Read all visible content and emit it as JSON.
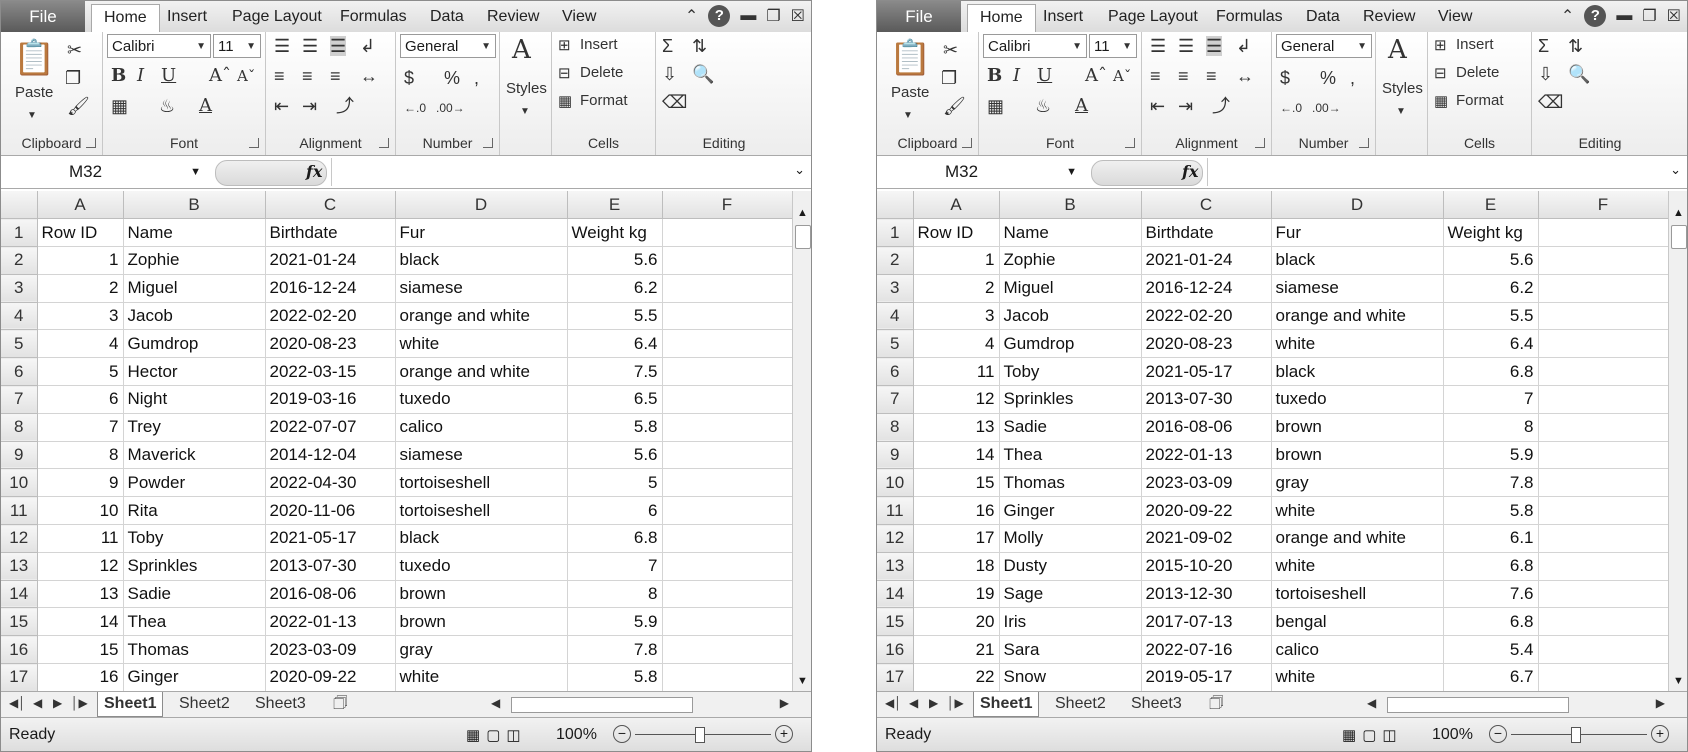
{
  "tabs": {
    "file": "File",
    "home": "Home",
    "insert": "Insert",
    "page_layout": "Page Layout",
    "formulas": "Formulas",
    "data": "Data",
    "review": "Review",
    "view": "View"
  },
  "ribbon": {
    "paste": "Paste",
    "clipboard": "Clipboard",
    "font_name": "Calibri",
    "font_size": "11",
    "font": "Font",
    "alignment": "Alignment",
    "number_format": "General",
    "number": "Number",
    "styles": "Styles",
    "insert": "Insert",
    "delete": "Delete",
    "format": "Format",
    "cells": "Cells",
    "editing": "Editing"
  },
  "formula_bar": {
    "name_box": "M32",
    "fx": "fx",
    "content": ""
  },
  "columns": [
    "A",
    "B",
    "C",
    "D",
    "E",
    "F"
  ],
  "sheet_tabs": [
    "Sheet1",
    "Sheet2",
    "Sheet3"
  ],
  "status": {
    "ready": "Ready",
    "zoom": "100%"
  },
  "sheets": [
    {
      "rows": [
        [
          "Row ID",
          "Name",
          "Birthdate",
          "Fur",
          "Weight kg"
        ],
        [
          "1",
          "Zophie",
          "2021-01-24",
          "black",
          "5.6"
        ],
        [
          "2",
          "Miguel",
          "2016-12-24",
          "siamese",
          "6.2"
        ],
        [
          "3",
          "Jacob",
          "2022-02-20",
          "orange and white",
          "5.5"
        ],
        [
          "4",
          "Gumdrop",
          "2020-08-23",
          "white",
          "6.4"
        ],
        [
          "5",
          "Hector",
          "2022-03-15",
          "orange and white",
          "7.5"
        ],
        [
          "6",
          "Night",
          "2019-03-16",
          "tuxedo",
          "6.5"
        ],
        [
          "7",
          "Trey",
          "2022-07-07",
          "calico",
          "5.8"
        ],
        [
          "8",
          "Maverick",
          "2014-12-04",
          "siamese",
          "5.6"
        ],
        [
          "9",
          "Powder",
          "2022-04-30",
          "tortoiseshell",
          "5"
        ],
        [
          "10",
          "Rita",
          "2020-11-06",
          "tortoiseshell",
          "6"
        ],
        [
          "11",
          "Toby",
          "2021-05-17",
          "black",
          "6.8"
        ],
        [
          "12",
          "Sprinkles",
          "2013-07-30",
          "tuxedo",
          "7"
        ],
        [
          "13",
          "Sadie",
          "2016-08-06",
          "brown",
          "8"
        ],
        [
          "14",
          "Thea",
          "2022-01-13",
          "brown",
          "5.9"
        ],
        [
          "15",
          "Thomas",
          "2023-03-09",
          "gray",
          "7.8"
        ],
        [
          "16",
          "Ginger",
          "2020-09-22",
          "white",
          "5.8"
        ]
      ]
    },
    {
      "rows": [
        [
          "Row ID",
          "Name",
          "Birthdate",
          "Fur",
          "Weight kg"
        ],
        [
          "1",
          "Zophie",
          "2021-01-24",
          "black",
          "5.6"
        ],
        [
          "2",
          "Miguel",
          "2016-12-24",
          "siamese",
          "6.2"
        ],
        [
          "3",
          "Jacob",
          "2022-02-20",
          "orange and white",
          "5.5"
        ],
        [
          "4",
          "Gumdrop",
          "2020-08-23",
          "white",
          "6.4"
        ],
        [
          "11",
          "Toby",
          "2021-05-17",
          "black",
          "6.8"
        ],
        [
          "12",
          "Sprinkles",
          "2013-07-30",
          "tuxedo",
          "7"
        ],
        [
          "13",
          "Sadie",
          "2016-08-06",
          "brown",
          "8"
        ],
        [
          "14",
          "Thea",
          "2022-01-13",
          "brown",
          "5.9"
        ],
        [
          "15",
          "Thomas",
          "2023-03-09",
          "gray",
          "7.8"
        ],
        [
          "16",
          "Ginger",
          "2020-09-22",
          "white",
          "5.8"
        ],
        [
          "17",
          "Molly",
          "2021-09-02",
          "orange and white",
          "6.1"
        ],
        [
          "18",
          "Dusty",
          "2015-10-20",
          "white",
          "6.8"
        ],
        [
          "19",
          "Sage",
          "2013-12-30",
          "tortoiseshell",
          "7.6"
        ],
        [
          "20",
          "Iris",
          "2017-07-13",
          "bengal",
          "6.8"
        ],
        [
          "21",
          "Sara",
          "2022-07-16",
          "calico",
          "5.4"
        ],
        [
          "22",
          "Snow",
          "2019-05-17",
          "white",
          "6.7"
        ]
      ]
    }
  ]
}
